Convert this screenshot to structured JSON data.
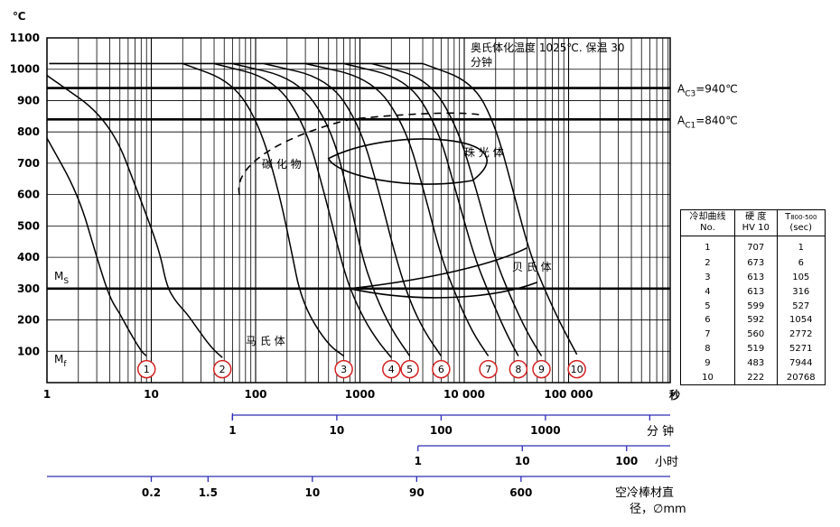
{
  "chart_data": {
    "type": "line",
    "title": "奥氏体化温度 1025℃.  保温 30 分钟",
    "ylabel": "℃",
    "xlabel": "秒",
    "x_scale": "log",
    "xlim": [
      1,
      1000000
    ],
    "ylim": [
      0,
      1100
    ],
    "y_ticks": [
      "100",
      "200",
      "300",
      "400",
      "500",
      "600",
      "700",
      "800",
      "900",
      "1000",
      "1100"
    ],
    "x_ticks": [
      "1",
      "10",
      "100",
      "1000",
      "10 000",
      "100 000"
    ],
    "lines": [
      {
        "label_prefix": "A",
        "label_sub": "C3",
        "label_suffix": "=940℃",
        "y": 940
      },
      {
        "label_prefix": "A",
        "label_sub": "C1",
        "label_suffix": "=840℃",
        "y": 840
      },
      {
        "label": "M",
        "label_sub": "S",
        "y": 300
      },
      {
        "label": "M",
        "label_sub": "f",
        "y": 40
      }
    ],
    "phase_labels": [
      "碳 化 物",
      "珠 光 体",
      "贝 氏 体",
      "马 氏 体"
    ],
    "cooling_curves": [
      {
        "no": "1",
        "hv": "707",
        "t": "1",
        "points": [
          [
            1,
            780
          ],
          [
            2,
            600
          ],
          [
            3,
            400
          ],
          [
            4,
            270
          ],
          [
            5,
            220
          ],
          [
            6,
            170
          ],
          [
            8,
            100
          ],
          [
            9,
            85
          ]
        ]
      },
      {
        "no": "2",
        "hv": "673",
        "t": "6",
        "points": [
          [
            1,
            980
          ],
          [
            4,
            840
          ],
          [
            8,
            580
          ],
          [
            12,
            420
          ],
          [
            14,
            310
          ],
          [
            17,
            260
          ],
          [
            22,
            220
          ],
          [
            28,
            170
          ],
          [
            38,
            110
          ],
          [
            48,
            80
          ]
        ]
      },
      {
        "no": "3",
        "hv": "613",
        "t": "105",
        "points": [
          [
            20,
            1018
          ],
          [
            60,
            960
          ],
          [
            110,
            820
          ],
          [
            170,
            600
          ],
          [
            230,
            390
          ],
          [
            260,
            300
          ],
          [
            330,
            210
          ],
          [
            500,
            120
          ],
          [
            700,
            85
          ]
        ]
      },
      {
        "no": "4",
        "hv": "613",
        "t": "316",
        "points": [
          [
            40,
            1018
          ],
          [
            150,
            970
          ],
          [
            300,
            820
          ],
          [
            460,
            600
          ],
          [
            650,
            400
          ],
          [
            800,
            300
          ],
          [
            1100,
            200
          ],
          [
            1500,
            130
          ],
          [
            2000,
            80
          ]
        ]
      },
      {
        "no": "5",
        "hv": "599",
        "t": "527",
        "points": [
          [
            60,
            1018
          ],
          [
            250,
            970
          ],
          [
            520,
            820
          ],
          [
            780,
            600
          ],
          [
            1050,
            400
          ],
          [
            1400,
            280
          ],
          [
            2000,
            170
          ],
          [
            3000,
            85
          ]
        ]
      },
      {
        "no": "6",
        "hv": "592",
        "t": "1054",
        "points": [
          [
            120,
            1018
          ],
          [
            500,
            970
          ],
          [
            1000,
            820
          ],
          [
            1550,
            600
          ],
          [
            2200,
            400
          ],
          [
            3000,
            260
          ],
          [
            4200,
            160
          ],
          [
            6000,
            85
          ]
        ]
      },
      {
        "no": "7",
        "hv": "560",
        "t": "2772",
        "points": [
          [
            300,
            1018
          ],
          [
            1300,
            970
          ],
          [
            2700,
            820
          ],
          [
            4200,
            600
          ],
          [
            6000,
            400
          ],
          [
            8500,
            270
          ],
          [
            12000,
            160
          ],
          [
            17000,
            85
          ]
        ]
      },
      {
        "no": "8",
        "hv": "519",
        "t": "5271",
        "points": [
          [
            700,
            1018
          ],
          [
            2800,
            970
          ],
          [
            5500,
            820
          ],
          [
            8500,
            600
          ],
          [
            12500,
            400
          ],
          [
            18000,
            270
          ],
          [
            25000,
            160
          ],
          [
            33000,
            85
          ]
        ]
      },
      {
        "no": "9",
        "hv": "483",
        "t": "7944",
        "points": [
          [
            1300,
            1018
          ],
          [
            4500,
            970
          ],
          [
            8500,
            820
          ],
          [
            13500,
            600
          ],
          [
            19500,
            400
          ],
          [
            28000,
            270
          ],
          [
            40000,
            160
          ],
          [
            55000,
            85
          ]
        ]
      },
      {
        "no": "10",
        "hv": "222",
        "t": "20768",
        "points": [
          [
            4000,
            1018
          ],
          [
            12000,
            960
          ],
          [
            20000,
            820
          ],
          [
            30000,
            600
          ],
          [
            42000,
            420
          ],
          [
            55000,
            320
          ],
          [
            80000,
            200
          ],
          [
            120000,
            90
          ]
        ]
      }
    ],
    "legend": "right",
    "table": {
      "headers": [
        [
          "冷却曲线",
          "No."
        ],
        [
          "硬 度",
          "HV 10"
        ],
        [
          "T",
          "800-500",
          "(sec)"
        ]
      ]
    },
    "secondary_scales": [
      {
        "unit": "分 钟",
        "ticks": [
          "1",
          "10",
          "100",
          "1000"
        ]
      },
      {
        "unit": "小时",
        "ticks": [
          "1",
          "10",
          "100"
        ]
      },
      {
        "unit_line1": "空冷棒材直",
        "unit_line2": "径，∅mm",
        "ticks": [
          "0.2",
          "1.5",
          "10",
          "90",
          "600"
        ]
      }
    ]
  },
  "colors": {
    "axis": "#000000",
    "curve": "#000000",
    "circle": "#d42020",
    "scale_line": "#2d2db8"
  }
}
